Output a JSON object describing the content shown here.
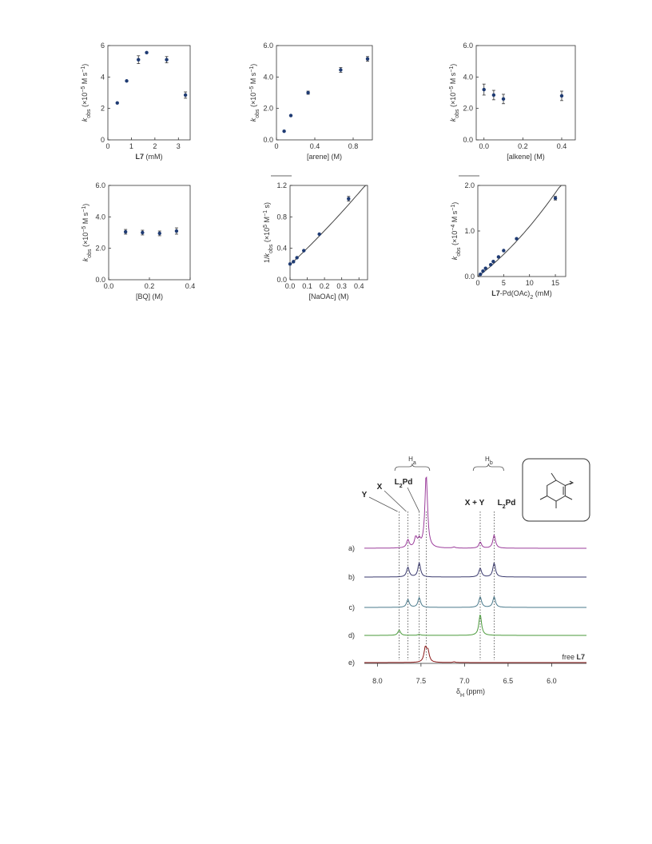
{
  "chart_data": [
    {
      "type": "scatter",
      "xlabel_bold": "L7",
      "xlabel_rest": " (mM)",
      "ylabel_main": "k",
      "ylabel_sub": "obs",
      "ylabel_unit": " (×10",
      "ylabel_exp": "−5",
      "ylabel_end": " M s",
      "ylabel_exp2": "−1",
      "ylabel_close": ")",
      "xlim": [
        0,
        3.5
      ],
      "ylim": [
        0,
        6
      ],
      "xticks": [
        0,
        1,
        2,
        3
      ],
      "yticks": [
        0,
        2,
        4,
        6
      ],
      "xtick_labels": [
        "0",
        "1",
        "2",
        "3"
      ],
      "ytick_labels": [
        "0",
        "2",
        "4",
        "6"
      ],
      "x": [
        0.4,
        0.8,
        1.3,
        1.65,
        2.5,
        3.3
      ],
      "y": [
        2.35,
        3.75,
        5.1,
        5.55,
        5.1,
        2.85
      ],
      "err": [
        0,
        0,
        0.25,
        0,
        0.2,
        0.2
      ],
      "fit": null,
      "overline": false
    },
    {
      "type": "scatter",
      "xlabel_bold": "",
      "xlabel_rest": "[arene] (M)",
      "ylabel_main": "k",
      "ylabel_sub": "obs",
      "ylabel_unit": " (×10",
      "ylabel_exp": "−5",
      "ylabel_end": " M s",
      "ylabel_exp2": "−1",
      "ylabel_close": ")",
      "xlim": [
        0,
        1.0
      ],
      "ylim": [
        0,
        6
      ],
      "xticks": [
        0,
        0.4,
        0.8
      ],
      "yticks": [
        0,
        2,
        4,
        6
      ],
      "xtick_labels": [
        "0",
        "0.4",
        "0.8"
      ],
      "ytick_labels": [
        "0.0",
        "2.0",
        "4.0",
        "6.0"
      ],
      "x": [
        0.08,
        0.15,
        0.33,
        0.67,
        0.95
      ],
      "y": [
        0.55,
        1.55,
        3.0,
        4.45,
        5.15
      ],
      "err": [
        0,
        0,
        0.1,
        0.15,
        0.15
      ],
      "fit": null,
      "overline": false
    },
    {
      "type": "scatter",
      "xlabel_bold": "",
      "xlabel_rest": "[alkene] (M)",
      "ylabel_main": "k",
      "ylabel_sub": "obs",
      "ylabel_unit": " (×10",
      "ylabel_exp": "−5",
      "ylabel_end": " M s",
      "ylabel_exp2": "−1",
      "ylabel_close": ")",
      "xlim": [
        -0.04,
        0.47
      ],
      "ylim": [
        0,
        6
      ],
      "xticks": [
        0,
        0.2,
        0.4
      ],
      "yticks": [
        0,
        2,
        4,
        6
      ],
      "xtick_labels": [
        "0.0",
        "0.2",
        "0.4"
      ],
      "ytick_labels": [
        "0.0",
        "2.0",
        "4.0",
        "6.0"
      ],
      "x": [
        0.0,
        0.05,
        0.1,
        0.4
      ],
      "y": [
        3.2,
        2.85,
        2.6,
        2.8
      ],
      "err": [
        0.35,
        0.3,
        0.3,
        0.3
      ],
      "fit": null,
      "overline": false
    },
    {
      "type": "scatter",
      "xlabel_bold": "",
      "xlabel_rest": "[BQ] (M)",
      "ylabel_main": "k",
      "ylabel_sub": "obs",
      "ylabel_unit": " (×10",
      "ylabel_exp": "−5",
      "ylabel_end": " M s",
      "ylabel_exp2": "−1",
      "ylabel_close": ")",
      "xlim": [
        0,
        0.4
      ],
      "ylim": [
        0,
        6
      ],
      "xticks": [
        0,
        0.2,
        0.4
      ],
      "yticks": [
        0,
        2,
        4,
        6
      ],
      "xtick_labels": [
        "0.0",
        "0.2",
        "0.4"
      ],
      "ytick_labels": [
        "0.0",
        "2.0",
        "4.0",
        "6.0"
      ],
      "x": [
        0.083,
        0.166,
        0.25,
        0.333
      ],
      "y": [
        3.05,
        3.0,
        2.95,
        3.1
      ],
      "err": [
        0.15,
        0.15,
        0.15,
        0.2
      ],
      "fit": null,
      "overline": false
    },
    {
      "type": "scatter",
      "xlabel_bold": "",
      "xlabel_rest": "[NaOAc] (M)",
      "ylabel_main": "1/k",
      "ylabel_sub": "obs",
      "ylabel_unit": " (×10",
      "ylabel_exp": "5",
      "ylabel_end": " M",
      "ylabel_exp2": "−1",
      "ylabel_close": " s)",
      "xlim": [
        0,
        0.45
      ],
      "ylim": [
        0,
        1.2
      ],
      "xticks": [
        0,
        0.1,
        0.2,
        0.3,
        0.4
      ],
      "yticks": [
        0,
        0.4,
        0.8,
        1.2
      ],
      "xtick_labels": [
        "0.0",
        "0.1",
        "0.2",
        "0.3",
        "0.4"
      ],
      "ytick_labels": [
        "0.0",
        "0.4",
        "0.8",
        "1.2"
      ],
      "x": [
        0.0,
        0.02,
        0.04,
        0.08,
        0.17,
        0.34
      ],
      "y": [
        0.2,
        0.23,
        0.28,
        0.37,
        0.58,
        1.03
      ],
      "err": [
        0,
        0,
        0,
        0,
        0,
        0.03
      ],
      "fit": {
        "x0": 0.0,
        "x1": 0.45,
        "a": 0.19,
        "b": 2.05,
        "c": 0.6
      },
      "overline": true
    },
    {
      "type": "scatter",
      "xlabel_bold": "L7",
      "xlabel_rest": "-Pd(OAc)",
      "xlabel_sub": "2",
      "xlabel_tail": " (mM)",
      "ylabel_main": "k",
      "ylabel_sub": "obs",
      "ylabel_unit": " (×10",
      "ylabel_exp": "−4",
      "ylabel_end": " M s",
      "ylabel_exp2": "−1",
      "ylabel_close": ")",
      "xlim": [
        0,
        17
      ],
      "ylim": [
        0,
        2.0
      ],
      "xticks": [
        0,
        5,
        10,
        15
      ],
      "yticks": [
        0,
        1.0,
        2.0
      ],
      "xtick_labels": [
        "0",
        "5",
        "10",
        "15"
      ],
      "ytick_labels": [
        "0.0",
        "1.0",
        "2.0"
      ],
      "x": [
        0.5,
        1.0,
        1.5,
        2.5,
        3.0,
        4.0,
        5.0,
        7.5,
        15.0
      ],
      "y": [
        0.05,
        0.12,
        0.18,
        0.26,
        0.33,
        0.43,
        0.57,
        0.83,
        1.72
      ],
      "err": [
        0,
        0,
        0,
        0,
        0,
        0,
        0,
        0,
        0.04
      ],
      "fit": {
        "x0": 0.0,
        "x1": 17,
        "a": 0.0,
        "b": 0.085,
        "c": 0.0025
      },
      "overline": true
    }
  ],
  "nmr": {
    "xaxis_label_main": "δ",
    "xaxis_label_sub": "H",
    "xaxis_label_rest": " (ppm)",
    "xlim": [
      8.15,
      5.6
    ],
    "xticks": [
      8.0,
      7.5,
      7.0,
      6.5,
      6.0
    ],
    "xtick_labels": [
      "8.0",
      "7.5",
      "7.0",
      "6.5",
      "6.0"
    ],
    "ha_label_main": "H",
    "ha_label_sub": "a",
    "hb_label_main": "H",
    "hb_label_sub": "b",
    "peak_labels": {
      "y": "Y",
      "x": "X",
      "l2pd_main": "L",
      "l2pd_sub": "2",
      "l2pd_rest": "Pd",
      "xy": "X + Y",
      "l2pd2_main": "L",
      "l2pd2_sub": "2",
      "l2pd2_rest": "Pd"
    },
    "reference_lines_ppm": [
      7.75,
      7.65,
      7.52,
      7.44,
      6.82,
      6.66
    ],
    "traces": [
      {
        "label": "a)",
        "color": "#9b3d9b",
        "note": "",
        "peaks": [
          [
            7.65,
            0.45
          ],
          [
            7.56,
            0.55
          ],
          [
            7.52,
            0.4
          ],
          [
            7.44,
            4.2
          ],
          [
            7.12,
            0.06
          ],
          [
            6.82,
            0.35
          ],
          [
            6.66,
            0.75
          ]
        ]
      },
      {
        "label": "b)",
        "color": "#3a3a6e",
        "note": "",
        "peaks": [
          [
            7.65,
            0.55
          ],
          [
            7.52,
            0.8
          ],
          [
            6.82,
            0.5
          ],
          [
            6.66,
            0.8
          ]
        ]
      },
      {
        "label": "c)",
        "color": "#4a7a8c",
        "note": "",
        "peaks": [
          [
            7.65,
            0.45
          ],
          [
            7.52,
            0.55
          ],
          [
            6.82,
            0.6
          ],
          [
            6.66,
            0.6
          ]
        ]
      },
      {
        "label": "d)",
        "color": "#4a9a3a",
        "note": "",
        "peaks": [
          [
            7.75,
            0.3
          ],
          [
            7.52,
            0.06
          ],
          [
            6.82,
            1.2
          ]
        ]
      },
      {
        "label": "e)",
        "color": "#8b1a1a",
        "note_plain": "free ",
        "note_bold": "L7",
        "peaks": [
          [
            7.45,
            0.8
          ],
          [
            7.42,
            0.6
          ],
          [
            7.12,
            0.04
          ]
        ]
      }
    ]
  }
}
